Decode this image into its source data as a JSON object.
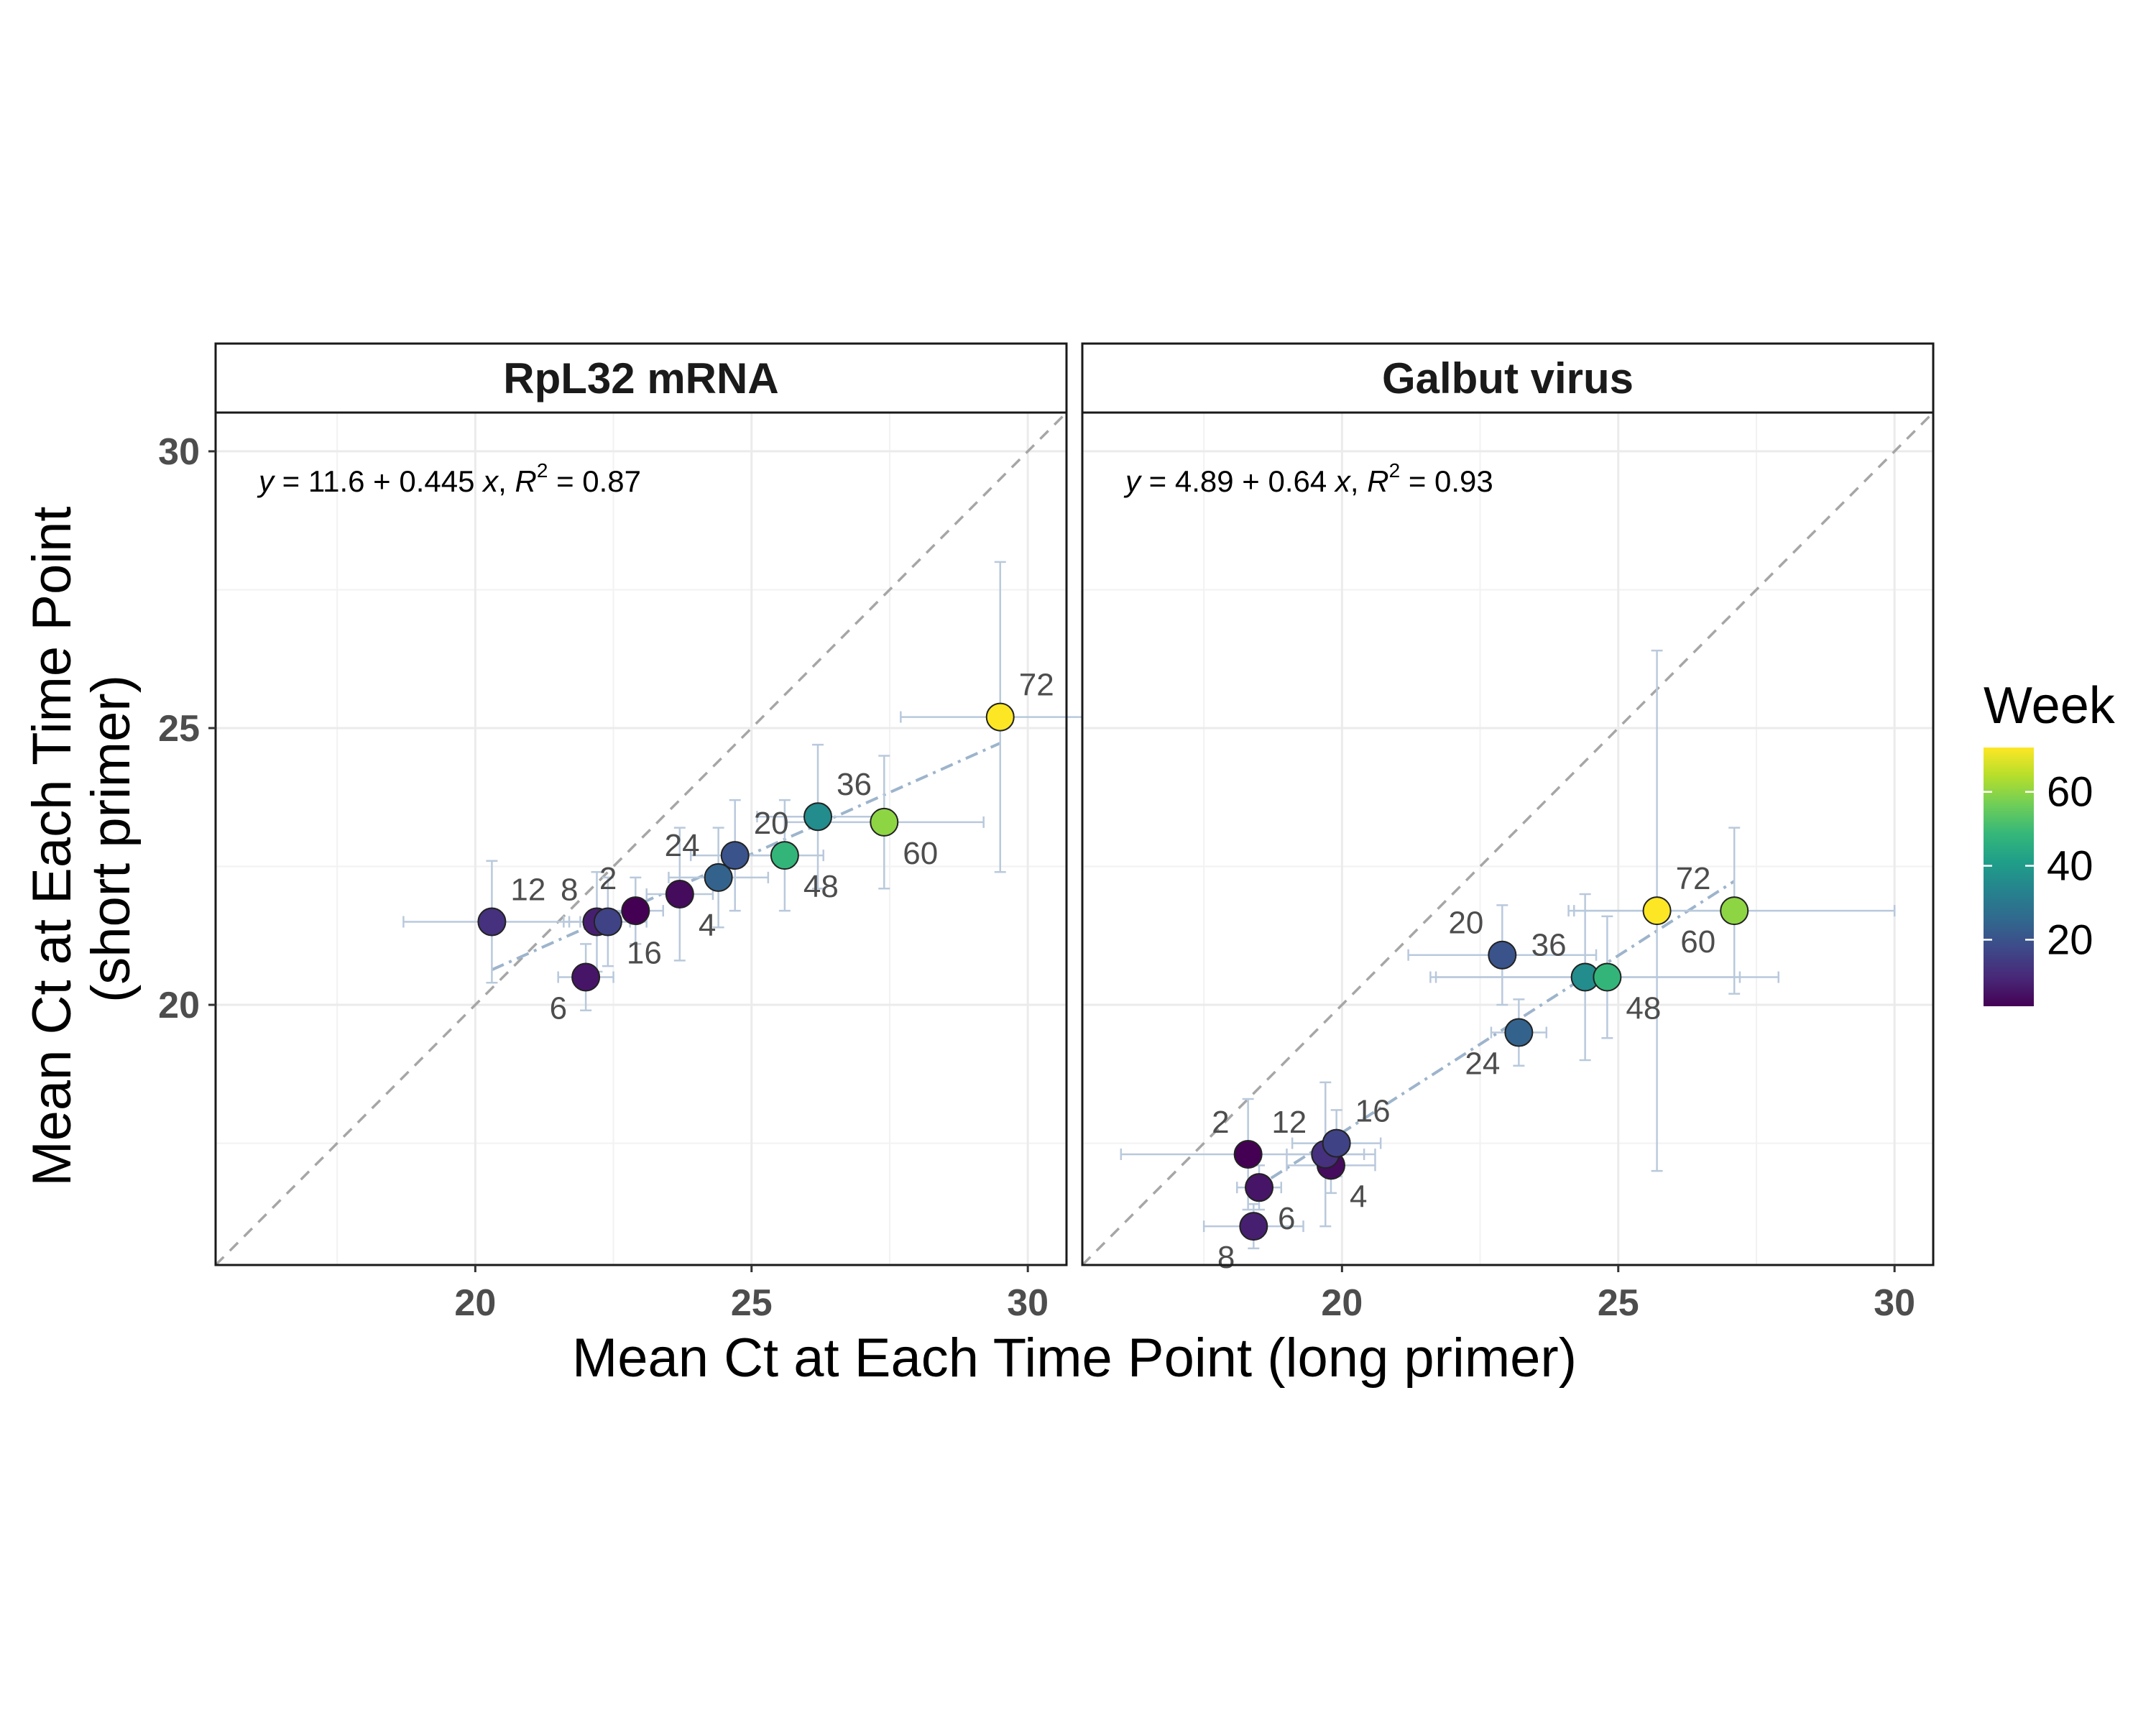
{
  "chart_data": {
    "type": "scatter",
    "x_label": "Mean Ct at Each Time Point (long primer)",
    "y_label_lines": [
      "Mean Ct at Each Time Point",
      "(short primer)"
    ],
    "xlim": [
      15.3,
      30.7
    ],
    "ylim": [
      15.3,
      30.7
    ],
    "x_ticks": [
      20,
      25,
      30
    ],
    "y_ticks": [
      20,
      25,
      30
    ],
    "grid": true,
    "identity_line": true,
    "legend": {
      "title": "Week",
      "placement": "right",
      "ticks": [
        20,
        40,
        60
      ],
      "range": [
        2,
        72
      ],
      "palette": [
        "#440154",
        "#482878",
        "#3e4989",
        "#31688e",
        "#26828e",
        "#1f9e89",
        "#35b779",
        "#6ece58",
        "#b5de2b",
        "#fde725"
      ]
    },
    "panels": [
      {
        "title": "RpL32 mRNA",
        "equation": {
          "intercept": "11.6",
          "slope": "0.445",
          "r2": "0.87"
        },
        "fit": {
          "intercept": 11.6,
          "slope": 0.445,
          "x_range": [
            20.3,
            29.5
          ]
        },
        "points": [
          {
            "week": 2,
            "label": "2",
            "x": 22.9,
            "y": 21.7,
            "xerr": 0.5,
            "yerr": 0.6,
            "label_pos": "top-left"
          },
          {
            "week": 4,
            "label": "4",
            "x": 23.7,
            "y": 22.0,
            "xerr": 0.6,
            "yerr": 1.2,
            "label_pos": "bottom-right"
          },
          {
            "week": 6,
            "label": "6",
            "x": 22.0,
            "y": 20.5,
            "xerr": 0.5,
            "yerr": 0.6,
            "label_pos": "bottom-left"
          },
          {
            "week": 8,
            "label": "8",
            "x": 22.2,
            "y": 21.5,
            "xerr": 0.6,
            "yerr": 0.9,
            "label_pos": "top-left"
          },
          {
            "week": 12,
            "label": "12",
            "x": 20.3,
            "y": 21.5,
            "xerr": 1.6,
            "yerr": 1.1,
            "label_pos": "top-right"
          },
          {
            "week": 16,
            "label": "16",
            "x": 22.4,
            "y": 21.5,
            "xerr": 0.7,
            "yerr": 0.8,
            "label_pos": "bottom-right"
          },
          {
            "week": 20,
            "label": "20",
            "x": 24.7,
            "y": 22.7,
            "xerr": 0.8,
            "yerr": 1.0,
            "label_pos": "top-right"
          },
          {
            "week": 24,
            "label": "24",
            "x": 24.4,
            "y": 22.3,
            "xerr": 0.9,
            "yerr": 0.9,
            "label_pos": "top-left"
          },
          {
            "week": 36,
            "label": "36",
            "x": 26.2,
            "y": 23.4,
            "xerr": 1.1,
            "yerr": 1.3,
            "label_pos": "top-right"
          },
          {
            "week": 48,
            "label": "48",
            "x": 25.6,
            "y": 22.7,
            "xerr": 0.7,
            "yerr": 1.0,
            "label_pos": "bottom-right"
          },
          {
            "week": 60,
            "label": "60",
            "x": 27.4,
            "y": 23.3,
            "xerr": 1.8,
            "yerr": 1.2,
            "label_pos": "bottom-right"
          },
          {
            "week": 72,
            "label": "72",
            "x": 29.5,
            "y": 25.2,
            "xerr": 1.8,
            "yerr": 2.8,
            "label_pos": "top-right"
          }
        ]
      },
      {
        "title": "Galbut virus",
        "equation": {
          "intercept": "4.89",
          "slope": "0.64",
          "r2": "0.93"
        },
        "fit": {
          "intercept": 4.89,
          "slope": 0.64,
          "x_range": [
            18.3,
            27.1
          ]
        },
        "points": [
          {
            "week": 2,
            "label": "2",
            "x": 18.3,
            "y": 17.3,
            "xerr": 2.3,
            "yerr": 1.0,
            "label_pos": "top-left"
          },
          {
            "week": 4,
            "label": "4",
            "x": 19.8,
            "y": 17.1,
            "xerr": 0.8,
            "yerr": 0.5,
            "label_pos": "bottom-right"
          },
          {
            "week": 6,
            "label": "6",
            "x": 18.5,
            "y": 16.7,
            "xerr": 0.4,
            "yerr": 0.4,
            "label_pos": "bottom-right"
          },
          {
            "week": 8,
            "label": "8",
            "x": 18.4,
            "y": 16.0,
            "xerr": 0.9,
            "yerr": 0.4,
            "label_pos": "bottom-left"
          },
          {
            "week": 12,
            "label": "12",
            "x": 19.7,
            "y": 17.3,
            "xerr": 0.7,
            "yerr": 1.3,
            "label_pos": "top-left"
          },
          {
            "week": 16,
            "label": "16",
            "x": 19.9,
            "y": 17.5,
            "xerr": 0.8,
            "yerr": 0.6,
            "label_pos": "top-right"
          },
          {
            "week": 20,
            "label": "20",
            "x": 22.9,
            "y": 20.9,
            "xerr": 1.7,
            "yerr": 0.9,
            "label_pos": "top-left"
          },
          {
            "week": 24,
            "label": "24",
            "x": 23.2,
            "y": 19.5,
            "xerr": 0.5,
            "yerr": 0.6,
            "label_pos": "bottom-left"
          },
          {
            "week": 36,
            "label": "36",
            "x": 24.4,
            "y": 20.5,
            "xerr": 2.8,
            "yerr": 1.5,
            "label_pos": "top-left"
          },
          {
            "week": 48,
            "label": "48",
            "x": 24.8,
            "y": 20.5,
            "xerr": 3.1,
            "yerr": 1.1,
            "label_pos": "bottom-right"
          },
          {
            "week": 60,
            "label": "60",
            "x": 27.1,
            "y": 21.7,
            "xerr": 2.9,
            "yerr": 1.5,
            "label_pos": "bottom-left"
          },
          {
            "week": 72,
            "label": "72",
            "x": 25.7,
            "y": 21.7,
            "xerr": 1.6,
            "yerr": 4.7,
            "label_pos": "top-right"
          }
        ]
      }
    ]
  }
}
